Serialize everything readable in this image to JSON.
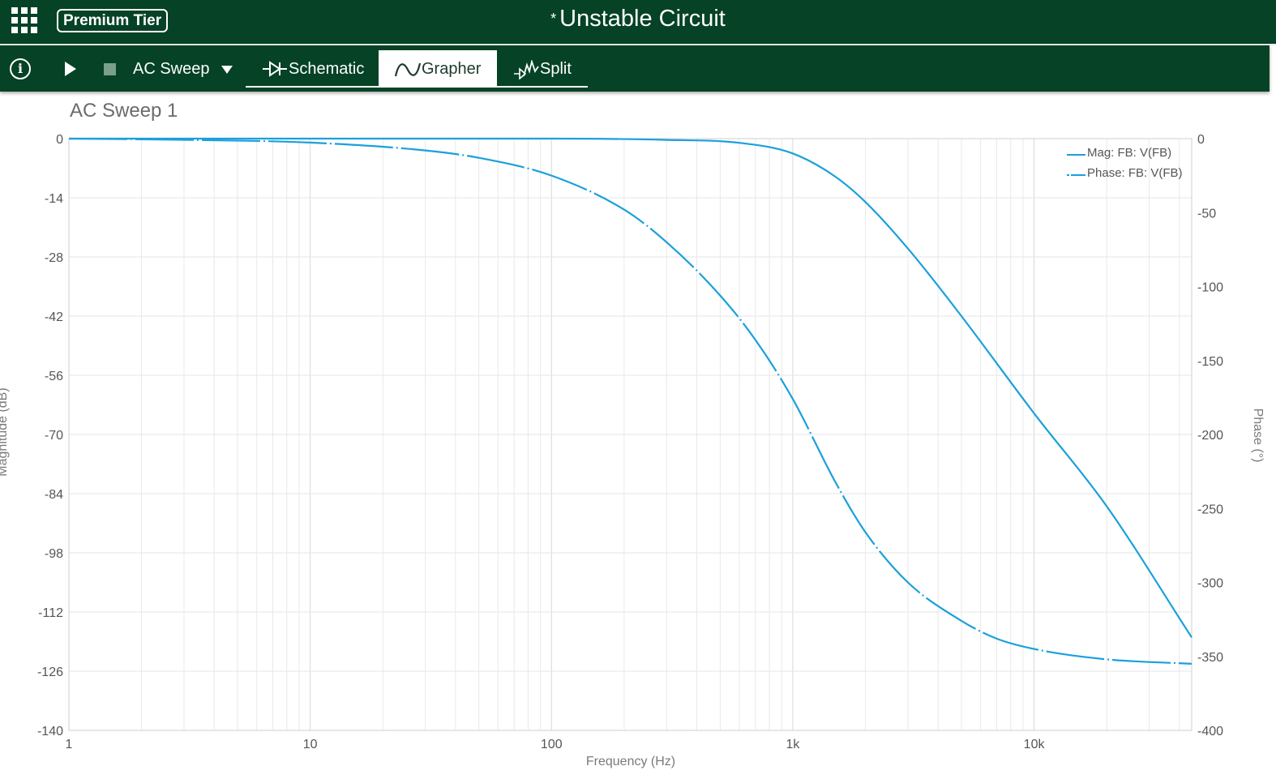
{
  "header": {
    "apps_icon": "grid-apps-icon",
    "tier_badge": "Premium Tier",
    "modified_marker": "*",
    "title": "Unstable Circuit",
    "bar_color": "#054226"
  },
  "toolbar": {
    "info_icon": "info-icon",
    "info_glyph": "i",
    "run_icon": "play-icon",
    "stop_icon": "stop-icon",
    "analysis": "AC Sweep",
    "tabs": [
      {
        "label": "Schematic",
        "icon": "schematic-diode-icon",
        "active": false
      },
      {
        "label": "Grapher",
        "icon": "sine-wave-icon",
        "active": true
      },
      {
        "label": "Split",
        "icon": "split-view-icon",
        "active": false
      }
    ]
  },
  "graph": {
    "title": "AC Sweep 1",
    "line_color": "#1aa0dc"
  },
  "chart_data": {
    "type": "line",
    "xlabel": "Frequency (Hz)",
    "x_scale": "log",
    "xlim": [
      1,
      45000
    ],
    "x_ticks": [
      {
        "value": 1,
        "label": "1"
      },
      {
        "value": 10,
        "label": "10"
      },
      {
        "value": 100,
        "label": "100"
      },
      {
        "value": 1000,
        "label": "1k"
      },
      {
        "value": 10000,
        "label": "10k"
      }
    ],
    "y_left": {
      "label": "Magnitude (dB)",
      "lim": [
        -140,
        0
      ],
      "ticks": [
        0,
        -14,
        -28,
        -42,
        -56,
        -70,
        -84,
        -98,
        -112,
        -126,
        -140
      ]
    },
    "y_right": {
      "label": "Phase (°)",
      "lim": [
        -400,
        0
      ],
      "ticks": [
        0,
        -50,
        -100,
        -150,
        -200,
        -250,
        -300,
        -350,
        -400
      ]
    },
    "grid": true,
    "legend_position": "top-right",
    "series": [
      {
        "name": "Mag: FB: V(FB)",
        "axis": "left",
        "style": "solid",
        "x": [
          1,
          10,
          100,
          300,
          600,
          1000,
          1500,
          2000,
          3000,
          5000,
          10000,
          20000,
          45000
        ],
        "y": [
          0,
          0,
          0,
          -0.3,
          -1,
          -3.5,
          -9,
          -15,
          -26,
          -42,
          -65,
          -87,
          -118
        ]
      },
      {
        "name": "Phase: FB: V(FB)",
        "axis": "right",
        "style": "dash-dot",
        "x": [
          1,
          3,
          10,
          30,
          50,
          100,
          200,
          300,
          500,
          700,
          1000,
          1500,
          2000,
          3000,
          5000,
          7000,
          10000,
          20000,
          45000
        ],
        "y": [
          0,
          -0.8,
          -2.7,
          -8,
          -13,
          -25,
          -48,
          -70,
          -106,
          -136,
          -176,
          -232,
          -266,
          -300,
          -326,
          -338,
          -345,
          -352,
          -355
        ]
      }
    ]
  }
}
